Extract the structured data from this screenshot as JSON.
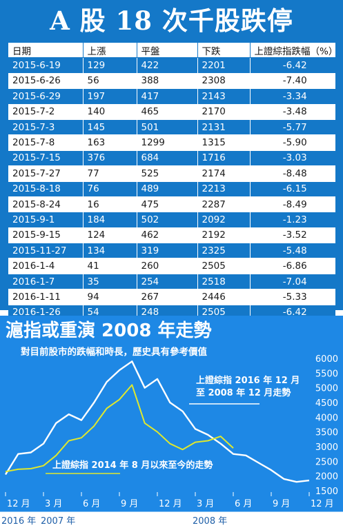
{
  "title": "A 股 18 次千股跌停",
  "table": {
    "headers": [
      "日期",
      "上漲",
      "平盤",
      "下跌",
      "上證綜指跌幅（%）"
    ],
    "rows": [
      [
        "2015-6-19",
        "129",
        "422",
        "2201",
        "-6.42"
      ],
      [
        "2015-6-26",
        "56",
        "388",
        "2308",
        "-7.40"
      ],
      [
        "2015-6-29",
        "197",
        "417",
        "2143",
        "-3.34"
      ],
      [
        "2015-7-2",
        "140",
        "465",
        "2170",
        "-3.48"
      ],
      [
        "2015-7-3",
        "145",
        "501",
        "2131",
        "-5.77"
      ],
      [
        "2015-7-8",
        "163",
        "1299",
        "1315",
        "-5.90"
      ],
      [
        "2015-7-15",
        "376",
        "684",
        "1716",
        "-3.03"
      ],
      [
        "2015-7-27",
        "77",
        "525",
        "2174",
        "-8.48"
      ],
      [
        "2015-8-18",
        "76",
        "489",
        "2213",
        "-6.15"
      ],
      [
        "2015-8-24",
        "16",
        "475",
        "2287",
        "-8.49"
      ],
      [
        "2015-9-1",
        "184",
        "502",
        "2092",
        "-1.23"
      ],
      [
        "2015-9-15",
        "124",
        "462",
        "2192",
        "-3.52"
      ],
      [
        "2015-11-27",
        "134",
        "319",
        "2325",
        "-5.48"
      ],
      [
        "2016-1-4",
        "41",
        "260",
        "2505",
        "-6.86"
      ],
      [
        "2016-1-7",
        "35",
        "254",
        "2518",
        "-7.04"
      ],
      [
        "2016-1-11",
        "94",
        "267",
        "2446",
        "-5.33"
      ],
      [
        "2016-1-26",
        "54",
        "248",
        "2505",
        "-6.42"
      ]
    ]
  },
  "chart_data": {
    "type": "line",
    "title": "滬指或重演 2008 年走勢",
    "subtitle": "對目前股市的跌幅和時長，歷史具有參考價值",
    "x": [
      "12 月",
      "1 月",
      "2 月",
      "3 月",
      "4 月",
      "5 月",
      "6 月",
      "7 月",
      "8 月",
      "9 月",
      "10 月",
      "11 月",
      "12 月",
      "1 月",
      "2 月",
      "3 月",
      "4 月",
      "5 月",
      "6 月",
      "7 月",
      "8 月",
      "9 月",
      "10 月",
      "11 月",
      "12 月"
    ],
    "x_tick_labels": [
      "12 月",
      "3 月",
      "6 月",
      "9 月",
      "12 月",
      "3 月",
      "6 月",
      "9 月",
      "12 月"
    ],
    "x_year_labels": [
      "2016 年",
      "2007 年",
      "2008 年"
    ],
    "ylim": [
      1500,
      6000
    ],
    "y_ticks": [
      1500,
      2000,
      2500,
      3000,
      3500,
      4000,
      4500,
      5000,
      5500,
      6000
    ],
    "series": [
      {
        "name": "上證綜指 2016 年 12 月\n至 2008 年 12 月走勢",
        "color": "#ffffff",
        "values": [
          2050,
          2750,
          2800,
          3100,
          3800,
          4100,
          3900,
          4500,
          5200,
          5600,
          5900,
          5000,
          5300,
          4500,
          4200,
          3600,
          3400,
          3100,
          2750,
          2700,
          2450,
          2200,
          1900,
          1800,
          1850
        ]
      },
      {
        "name": "上證綜指 2014 年 8 月以來至今的走勢",
        "color": "#e0e82c",
        "values": [
          2150,
          2230,
          2250,
          2350,
          2700,
          3200,
          3300,
          3700,
          4300,
          4600,
          5100,
          3800,
          3500,
          3100,
          2900,
          3150,
          3200,
          3350,
          2950,
          null,
          null,
          null,
          null,
          null,
          null
        ]
      }
    ]
  }
}
